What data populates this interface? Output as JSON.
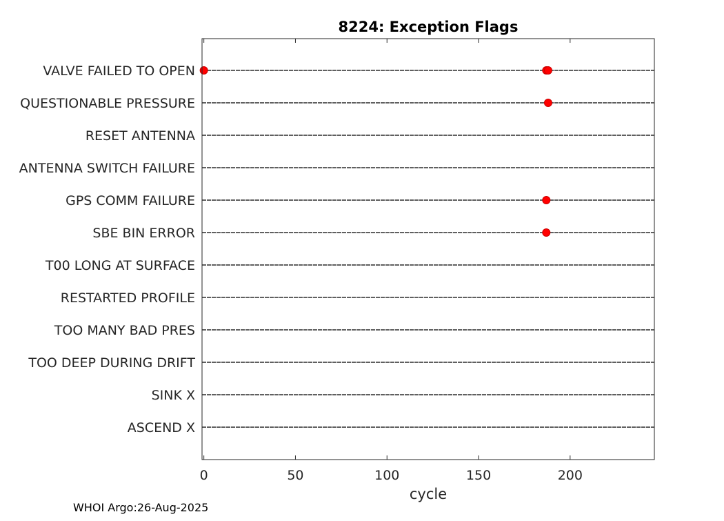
{
  "chart_data": {
    "type": "scatter",
    "title": "8224: Exception Flags",
    "xlabel": "cycle",
    "ylabel": "",
    "xlim": [
      -1,
      246
    ],
    "x_ticks": [
      0,
      50,
      100,
      150,
      200
    ],
    "x_tick_labels": [
      "0",
      "50",
      "100",
      "150",
      "200"
    ],
    "grid": false,
    "categories": [
      "VALVE FAILED TO OPEN",
      "QUESTIONABLE PRESSURE",
      "RESET ANTENNA",
      "ANTENNA SWITCH FAILURE",
      "GPS COMM FAILURE",
      "SBE BIN ERROR",
      "T00 LONG AT SURFACE",
      "RESTARTED PROFILE",
      "TOO MANY BAD PRES",
      "TOO DEEP DURING DRIFT",
      "SINK X",
      "ASCEND X"
    ],
    "series": [
      {
        "name": "flags",
        "marker_color": "#ff0000",
        "points": [
          {
            "category": "VALVE FAILED TO OPEN",
            "x": 0
          },
          {
            "category": "VALVE FAILED TO OPEN",
            "x": 187
          },
          {
            "category": "VALVE FAILED TO OPEN",
            "x": 188
          },
          {
            "category": "QUESTIONABLE PRESSURE",
            "x": 188
          },
          {
            "category": "GPS COMM FAILURE",
            "x": 187
          },
          {
            "category": "SBE BIN ERROR",
            "x": 187
          }
        ]
      }
    ],
    "line_style": "dashed",
    "line_color": "#000000"
  },
  "footer": {
    "note": "WHOI Argo:26-Aug-2025"
  }
}
